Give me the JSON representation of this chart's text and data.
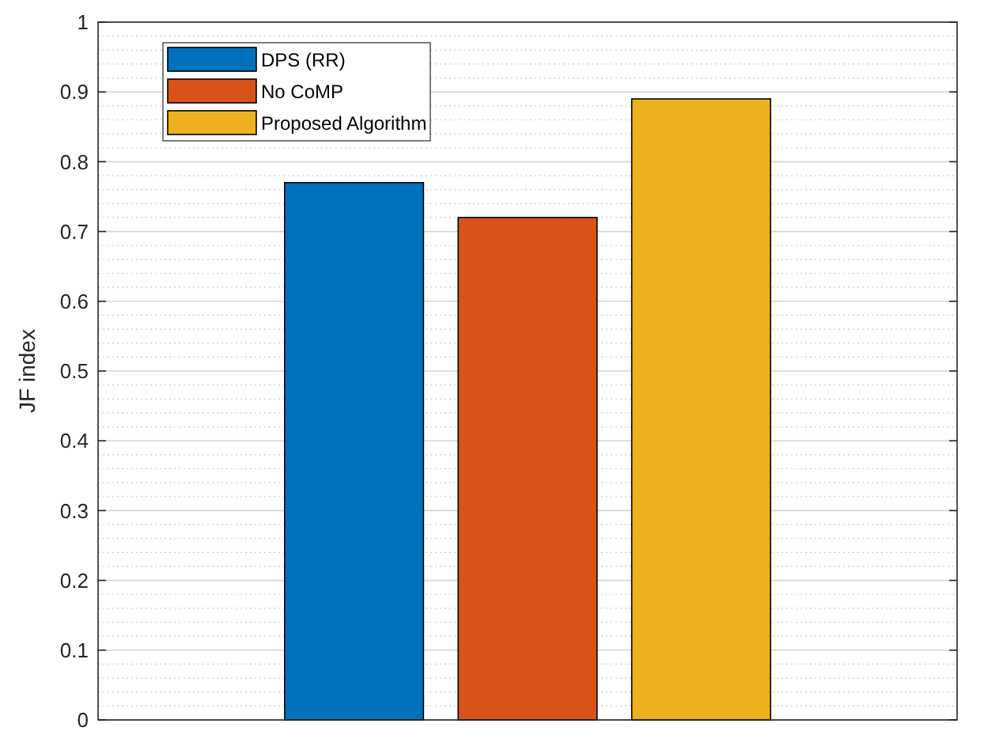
{
  "chart_data": {
    "type": "bar",
    "ylabel": "JF index",
    "categories": [
      null
    ],
    "series": [
      {
        "name": "DPS (RR)",
        "color": "#0072bd",
        "values": [
          0.77
        ]
      },
      {
        "name": "No CoMP",
        "color": "#d95319",
        "values": [
          0.72
        ]
      },
      {
        "name": "Proposed Algorithm",
        "color": "#edb120",
        "values": [
          0.89
        ]
      }
    ],
    "ylim": [
      0,
      1
    ],
    "yticks": [
      0,
      0.1,
      0.2,
      0.3,
      0.4,
      0.5,
      0.6,
      0.7,
      0.8,
      0.9,
      1
    ],
    "grid": true,
    "legend": "top left"
  }
}
